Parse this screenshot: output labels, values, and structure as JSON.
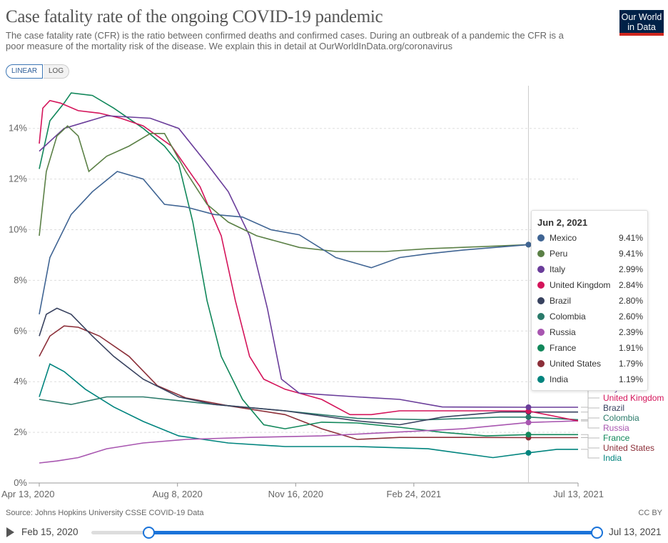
{
  "header": {
    "title": "Case fatality rate of the ongoing COVID-19 pandemic",
    "subtitle": "The case fatality rate (CFR) is the ratio between confirmed deaths and confirmed cases. During an outbreak of a pandemic the CFR is a poor measure of the mortality risk of the disease. We explain this in detail at OurWorldInData.org/coronavirus",
    "logo": "Our World in Data"
  },
  "scale_toggle": {
    "linear": "LINEAR",
    "log": "LOG",
    "selected": "LINEAR"
  },
  "footer": {
    "source": "Source: Johns Hopkins University CSSE COVID-19 Data",
    "license": "CC BY"
  },
  "timeline": {
    "start": "Feb 15, 2020",
    "end": "Jul 13, 2021",
    "selected_start_fraction": 0.11,
    "selected_end_fraction": 1.0
  },
  "tooltip": {
    "date": "Jun 2, 2021",
    "rows": [
      {
        "name": "Mexico",
        "value": "9.41%",
        "color": "#3f6493"
      },
      {
        "name": "Peru",
        "value": "9.41%",
        "color": "#5b8046"
      },
      {
        "name": "Italy",
        "value": "2.99%",
        "color": "#6a3d9a"
      },
      {
        "name": "United Kingdom",
        "value": "2.84%",
        "color": "#d4145a"
      },
      {
        "name": "Brazil",
        "value": "2.80%",
        "color": "#38425f"
      },
      {
        "name": "Colombia",
        "value": "2.60%",
        "color": "#2a7a6a"
      },
      {
        "name": "Russia",
        "value": "2.39%",
        "color": "#a856b0"
      },
      {
        "name": "France",
        "value": "1.91%",
        "color": "#11875a"
      },
      {
        "name": "United States",
        "value": "1.79%",
        "color": "#8c2f39"
      },
      {
        "name": "India",
        "value": "1.19%",
        "color": "#00847e"
      }
    ]
  },
  "chart_data": {
    "type": "line",
    "title": "Case fatality rate of the ongoing COVID-19 pandemic",
    "x_unit": "days since Apr 13, 2020",
    "xlim": [
      0,
      456
    ],
    "ylim": [
      0,
      15.5
    ],
    "x_ticks": [
      {
        "day": 0,
        "label": "Apr 13, 2020"
      },
      {
        "day": 117,
        "label": "Aug 8, 2020"
      },
      {
        "day": 217,
        "label": "Nov 16, 2020"
      },
      {
        "day": 317,
        "label": "Feb 24, 2021"
      },
      {
        "day": 456,
        "label": "Jul 13, 2021"
      }
    ],
    "y_ticks": [
      {
        "v": 0,
        "label": "0%"
      },
      {
        "v": 2,
        "label": "2%"
      },
      {
        "v": 4,
        "label": "4%"
      },
      {
        "v": 6,
        "label": "6%"
      },
      {
        "v": 8,
        "label": "8%"
      },
      {
        "v": 10,
        "label": "10%"
      },
      {
        "v": 12,
        "label": "12%"
      },
      {
        "v": 14,
        "label": "14%"
      }
    ],
    "hover_day": 414,
    "grid": true,
    "series": [
      {
        "name": "Mexico",
        "color": "#3f6493",
        "label": "",
        "points": [
          [
            0,
            6.66
          ],
          [
            9,
            8.9
          ],
          [
            27,
            10.6
          ],
          [
            45,
            11.5
          ],
          [
            66,
            12.3
          ],
          [
            88,
            12
          ],
          [
            106,
            11
          ],
          [
            124,
            10.9
          ],
          [
            148,
            10.6
          ],
          [
            172,
            10.5
          ],
          [
            196,
            10
          ],
          [
            220,
            9.8
          ],
          [
            251,
            8.9
          ],
          [
            281,
            8.5
          ],
          [
            305,
            8.9
          ],
          [
            329,
            9.05
          ],
          [
            359,
            9.2
          ],
          [
            414,
            9.41
          ]
        ]
      },
      {
        "name": "Peru",
        "color": "#5b8046",
        "label": "",
        "points": [
          [
            0,
            9.76
          ],
          [
            6,
            12.3
          ],
          [
            15,
            13.7
          ],
          [
            24,
            14.1
          ],
          [
            33,
            13.7
          ],
          [
            42,
            12.3
          ],
          [
            57,
            12.9
          ],
          [
            76,
            13.3
          ],
          [
            94,
            13.8
          ],
          [
            106,
            13.8
          ],
          [
            124,
            12.3
          ],
          [
            142,
            11
          ],
          [
            160,
            10.3
          ],
          [
            184,
            9.76
          ],
          [
            220,
            9.3
          ],
          [
            251,
            9.14
          ],
          [
            293,
            9.14
          ],
          [
            329,
            9.25
          ],
          [
            378,
            9.34
          ],
          [
            414,
            9.41
          ]
        ]
      },
      {
        "name": "Italy",
        "color": "#6a3d9a",
        "label": "Italy",
        "points": [
          [
            0,
            13.1
          ],
          [
            21,
            14
          ],
          [
            57,
            14.5
          ],
          [
            94,
            14.4
          ],
          [
            118,
            14
          ],
          [
            142,
            12.6
          ],
          [
            160,
            11.5
          ],
          [
            178,
            9.76
          ],
          [
            193,
            6.9
          ],
          [
            205,
            4.1
          ],
          [
            220,
            3.55
          ],
          [
            269,
            3.4
          ],
          [
            305,
            3.3
          ],
          [
            341,
            3.0
          ],
          [
            414,
            2.99
          ],
          [
            456,
            2.99
          ]
        ]
      },
      {
        "name": "United Kingdom",
        "color": "#d4145a",
        "label": "United Kingdom",
        "points": [
          [
            0,
            13.4
          ],
          [
            3,
            14.8
          ],
          [
            9,
            15.1
          ],
          [
            18,
            15
          ],
          [
            33,
            14.7
          ],
          [
            51,
            14.6
          ],
          [
            69,
            14.4
          ],
          [
            88,
            14.1
          ],
          [
            112,
            13.3
          ],
          [
            136,
            11.7
          ],
          [
            154,
            9.76
          ],
          [
            166,
            7.2
          ],
          [
            178,
            5
          ],
          [
            190,
            4.1
          ],
          [
            208,
            3.7
          ],
          [
            239,
            3.3
          ],
          [
            263,
            2.7
          ],
          [
            281,
            2.7
          ],
          [
            305,
            2.85
          ],
          [
            341,
            2.85
          ],
          [
            390,
            2.85
          ],
          [
            414,
            2.84
          ],
          [
            456,
            2.45
          ]
        ]
      },
      {
        "name": "Brazil",
        "color": "#38425f",
        "label": "Brazil",
        "points": [
          [
            0,
            5.8
          ],
          [
            6,
            6.66
          ],
          [
            15,
            6.9
          ],
          [
            27,
            6.66
          ],
          [
            45,
            5.8
          ],
          [
            63,
            5
          ],
          [
            88,
            4.1
          ],
          [
            118,
            3.4
          ],
          [
            148,
            3.1
          ],
          [
            208,
            2.85
          ],
          [
            269,
            2.45
          ],
          [
            305,
            2.3
          ],
          [
            341,
            2.6
          ],
          [
            390,
            2.8
          ],
          [
            414,
            2.8
          ],
          [
            456,
            2.8
          ]
        ]
      },
      {
        "name": "Colombia",
        "color": "#2a7a6a",
        "label": "Colombia",
        "points": [
          [
            0,
            3.3
          ],
          [
            27,
            3.1
          ],
          [
            57,
            3.4
          ],
          [
            88,
            3.4
          ],
          [
            148,
            3.1
          ],
          [
            208,
            2.85
          ],
          [
            269,
            2.55
          ],
          [
            329,
            2.5
          ],
          [
            390,
            2.6
          ],
          [
            414,
            2.6
          ],
          [
            456,
            2.5
          ]
        ]
      },
      {
        "name": "Russia",
        "color": "#a856b0",
        "label": "Russia",
        "points": [
          [
            0,
            0.79
          ],
          [
            15,
            0.87
          ],
          [
            33,
            1.0
          ],
          [
            57,
            1.35
          ],
          [
            88,
            1.58
          ],
          [
            124,
            1.72
          ],
          [
            178,
            1.8
          ],
          [
            239,
            1.86
          ],
          [
            299,
            2.0
          ],
          [
            359,
            2.14
          ],
          [
            414,
            2.39
          ],
          [
            456,
            2.45
          ]
        ]
      },
      {
        "name": "France",
        "color": "#11875a",
        "label": "France",
        "points": [
          [
            0,
            12.4
          ],
          [
            9,
            14.3
          ],
          [
            21,
            15
          ],
          [
            27,
            15.4
          ],
          [
            45,
            15.3
          ],
          [
            63,
            14.8
          ],
          [
            88,
            14
          ],
          [
            106,
            13.3
          ],
          [
            118,
            12.6
          ],
          [
            130,
            10.3
          ],
          [
            142,
            7.2
          ],
          [
            154,
            5
          ],
          [
            172,
            3.3
          ],
          [
            190,
            2.3
          ],
          [
            208,
            2.14
          ],
          [
            239,
            2.4
          ],
          [
            269,
            2.37
          ],
          [
            305,
            2.2
          ],
          [
            341,
            2.0
          ],
          [
            378,
            1.86
          ],
          [
            414,
            1.91
          ],
          [
            456,
            1.91
          ]
        ]
      },
      {
        "name": "United States",
        "color": "#8c2f39",
        "label": "United States",
        "points": [
          [
            0,
            5
          ],
          [
            9,
            5.8
          ],
          [
            21,
            6.2
          ],
          [
            33,
            6.15
          ],
          [
            51,
            5.8
          ],
          [
            76,
            5
          ],
          [
            100,
            3.84
          ],
          [
            124,
            3.36
          ],
          [
            160,
            3.05
          ],
          [
            208,
            2.7
          ],
          [
            239,
            2.14
          ],
          [
            269,
            1.72
          ],
          [
            305,
            1.8
          ],
          [
            359,
            1.8
          ],
          [
            414,
            1.79
          ],
          [
            456,
            1.79
          ]
        ]
      },
      {
        "name": "India",
        "color": "#00847e",
        "label": "India",
        "points": [
          [
            0,
            3.4
          ],
          [
            9,
            4.7
          ],
          [
            21,
            4.4
          ],
          [
            39,
            3.7
          ],
          [
            63,
            3.0
          ],
          [
            88,
            2.43
          ],
          [
            118,
            1.86
          ],
          [
            160,
            1.58
          ],
          [
            208,
            1.44
          ],
          [
            269,
            1.44
          ],
          [
            329,
            1.35
          ],
          [
            384,
            1.0
          ],
          [
            414,
            1.19
          ],
          [
            438,
            1.33
          ],
          [
            456,
            1.33
          ]
        ]
      }
    ]
  }
}
